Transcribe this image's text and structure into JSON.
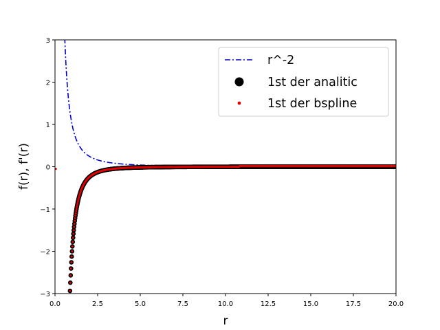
{
  "chart_data": {
    "type": "line",
    "xlabel": "r",
    "ylabel": "f(r), f'(r)",
    "xlim": [
      0,
      20
    ],
    "ylim": [
      -3,
      3
    ],
    "xticks": [
      "0.0",
      "2.5",
      "5.0",
      "7.5",
      "10.0",
      "12.5",
      "15.0",
      "17.5",
      "20.0"
    ],
    "yticks": [
      "3",
      "2",
      "1",
      "0",
      "−1",
      "−2",
      "−3"
    ],
    "xtick_values": [
      0,
      2.5,
      5,
      7.5,
      10,
      12.5,
      15,
      17.5,
      20
    ],
    "ytick_values": [
      3,
      2,
      1,
      0,
      -1,
      -2,
      -3
    ],
    "grid": false,
    "legend_position": "top-right",
    "series": [
      {
        "name": "r^-2",
        "style": "dash-dot line",
        "color": "#0000cc",
        "formula": "1/r^2",
        "x_range": [
          0.55,
          20
        ]
      },
      {
        "name": "1st der analitic",
        "style": "large markers",
        "color": "#000000",
        "formula": "-2/r^3",
        "x_range": [
          0.88,
          20
        ],
        "x_step": 0.02
      },
      {
        "name": "1st der bspline",
        "style": "small markers",
        "color": "#e00000",
        "formula": "-2/r^3",
        "x_range": [
          0.88,
          20
        ],
        "x_step": 0.02,
        "offset_beyond": 10.8,
        "offset_value": 0.015,
        "extra_points": [
          [
            0.05,
            -0.05
          ]
        ]
      }
    ]
  }
}
